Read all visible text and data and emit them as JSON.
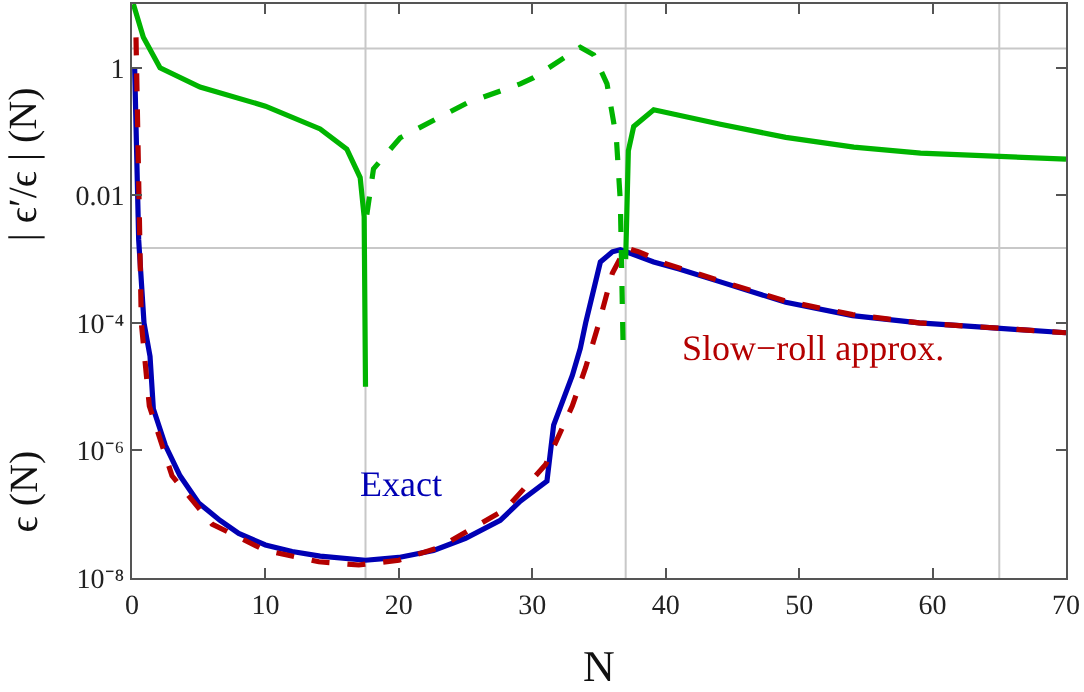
{
  "chart_data": {
    "type": "line",
    "xlabel": "N",
    "ylabel": "ϵ (N)",
    "log": "y",
    "xlim": [
      0,
      70
    ],
    "xticks": [
      0,
      10,
      20,
      30,
      40,
      50,
      60,
      70
    ],
    "ylim": [
      1e-08,
      10
    ],
    "yticks": [
      {
        "value": 1e-08,
        "label": "10⁻⁸"
      },
      {
        "value": 1e-06,
        "label": "10⁻⁶"
      },
      {
        "value": 0.0001,
        "label": "10⁻⁴"
      },
      0.01,
      1
    ],
    "grid": false,
    "series": [
      {
        "color": "#0000b4",
        "line_style": "solid",
        "x": [
          0.2,
          0.5,
          0.9,
          1.35,
          1.6,
          2.5,
          3.6,
          5,
          6.6,
          8,
          10,
          12,
          14.1,
          17.5,
          20,
          22.6,
          25,
          27.6,
          29.1,
          31.1,
          31.6,
          33,
          33.6,
          34,
          35.1,
          36,
          36.6,
          37.5,
          39.1,
          41,
          44.1,
          49,
          54,
          59,
          64,
          70
        ],
        "values": [
          1,
          0.002,
          0.0001,
          3e-05,
          4.5e-06,
          1.2e-06,
          4e-07,
          1.5e-07,
          8e-08,
          5e-08,
          3.3e-08,
          2.6e-08,
          2.2e-08,
          1.9e-08,
          2.1e-08,
          2.7e-08,
          4.2e-08,
          8e-08,
          1.6e-07,
          3.3e-07,
          2.5e-06,
          1.5e-05,
          4e-05,
          0.0001,
          0.0009,
          0.0013,
          0.0014,
          0.0012,
          0.0009,
          0.0007,
          0.00044,
          0.00021,
          0.00013,
          0.0001,
          8.5e-05,
          7e-05
        ]
      },
      {
        "color": "#b40000",
        "line_style": "dashed",
        "x": [
          0.3,
          0.7,
          1.3,
          3,
          6,
          10,
          14,
          17,
          20,
          23,
          28,
          31,
          33,
          34,
          35,
          36,
          37,
          38,
          40,
          44,
          49,
          54,
          59,
          70
        ],
        "values": [
          3,
          0.0001,
          5e-06,
          4e-07,
          7e-08,
          2.7e-08,
          1.8e-08,
          1.6e-08,
          1.9e-08,
          3e-08,
          1.2e-07,
          6e-07,
          5e-06,
          2e-05,
          0.0001,
          0.0006,
          0.0015,
          0.0013,
          0.00085,
          0.00046,
          0.00022,
          0.000135,
          0.0001,
          7e-05
        ]
      },
      {
        "color": "#00b400",
        "line_style": "solid",
        "x": [
          0.1,
          0.85,
          2.1,
          5.1,
          10,
          14.1,
          16.1,
          17.1,
          17.4,
          17.5,
          18,
          37,
          37.2,
          37.6,
          39.1,
          44.1,
          49,
          54.1,
          59.1,
          70
        ],
        "values": [
          10,
          3,
          1,
          0.5,
          0.25,
          0.11,
          0.053,
          0.019,
          0.0046,
          1e-05,
          null,
          0.001,
          0.05,
          0.12,
          0.22,
          0.13,
          0.081,
          0.057,
          0.046,
          0.037
        ]
      },
      {
        "color": "#00b400",
        "line_style": "dashed",
        "x": [
          17.6,
          18.1,
          20.1,
          25.1,
          29.1,
          30.1,
          33.6,
          34.6,
          35.6,
          36.3,
          36.6,
          36.8
        ],
        "values": [
          0.005,
          0.026,
          0.08,
          0.28,
          0.56,
          0.7,
          2.1,
          1.6,
          0.56,
          0.08,
          0.008,
          5e-05
        ]
      }
    ],
    "ref_lines": [
      {
        "axis": "x",
        "value": 17.5,
        "color": "#c8c8c8"
      },
      {
        "axis": "x",
        "value": 37,
        "color": "#c8c8c8"
      },
      {
        "axis": "x",
        "value": 65,
        "color": "#c8c8c8"
      },
      {
        "axis": "y",
        "value": 2,
        "color": "#c8c8c8"
      },
      {
        "axis": "y",
        "value": 0.0015,
        "color": "#c8c8c8"
      }
    ],
    "annotations": [
      "| ϵ′/ϵ | (N)",
      "Exact",
      "Slow−roll approx."
    ]
  }
}
